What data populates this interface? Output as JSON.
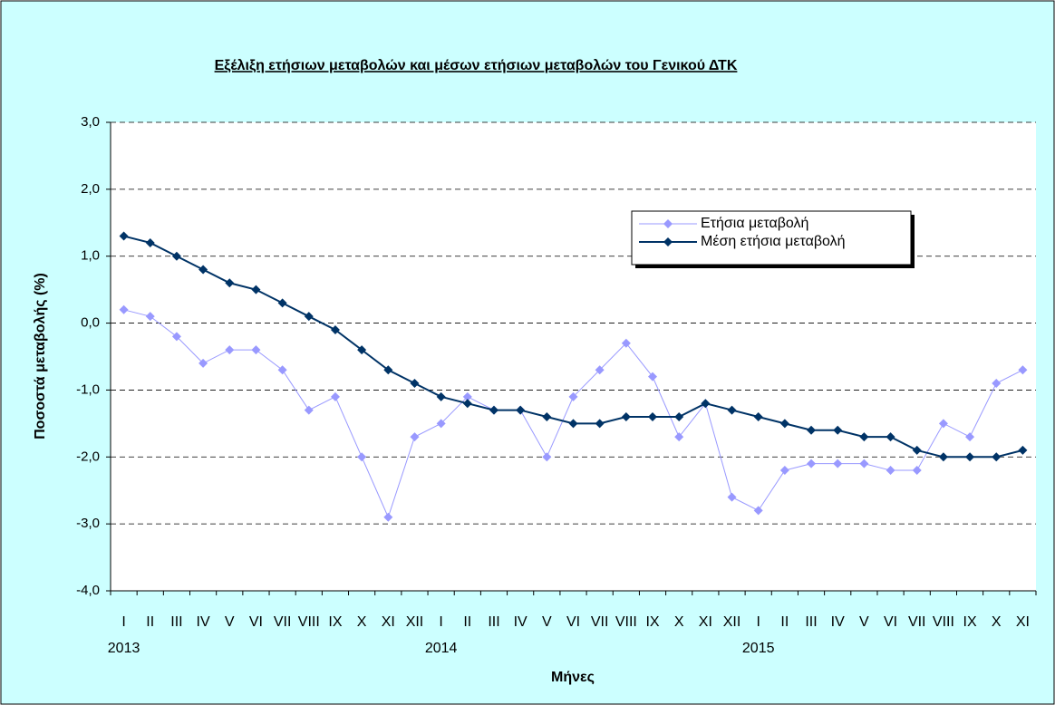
{
  "chart_data": {
    "type": "line",
    "title": "Εξέλιξη ετήσιων μεταβολών και μέσων ετήσιων μεταβολών του Γενικού ΔΤΚ",
    "x_label": "Μήνες",
    "y_label": "Ποσοστά μεταβολής (%)",
    "categories": [
      "I",
      "II",
      "III",
      "IV",
      "V",
      "VI",
      "VII",
      "VIII",
      "IX",
      "X",
      "XI",
      "XII",
      "I",
      "II",
      "III",
      "IV",
      "V",
      "VI",
      "VII",
      "VIII",
      "IX",
      "X",
      "XI",
      "XII",
      "I",
      "II",
      "III",
      "IV",
      "V",
      "VI",
      "VII",
      "VIII",
      "IX",
      "X",
      "XI"
    ],
    "year_labels": [
      "2013",
      null,
      null,
      null,
      null,
      null,
      null,
      null,
      null,
      null,
      null,
      null,
      "2014",
      null,
      null,
      null,
      null,
      null,
      null,
      null,
      null,
      null,
      null,
      null,
      "2015",
      null,
      null,
      null,
      null,
      null,
      null,
      null,
      null,
      null,
      null
    ],
    "series": [
      {
        "name": "Ετήσια μεταβολή",
        "color": "#9999ff",
        "values": [
          0.2,
          0.1,
          -0.2,
          -0.6,
          -0.4,
          -0.4,
          -0.7,
          -1.3,
          -1.1,
          -2.0,
          -2.9,
          -1.7,
          -1.5,
          -1.1,
          -1.3,
          -1.3,
          -2.0,
          -1.1,
          -0.7,
          -0.3,
          -0.8,
          -1.7,
          -1.2,
          -2.6,
          -2.8,
          -2.2,
          -2.1,
          -2.1,
          -2.1,
          -2.2,
          -2.2,
          -1.5,
          -1.7,
          -0.9,
          -0.7
        ]
      },
      {
        "name": "Μέση ετήσια μεταβολή",
        "color": "#003366",
        "values": [
          1.3,
          1.2,
          1.0,
          0.8,
          0.6,
          0.5,
          0.3,
          0.1,
          -0.1,
          -0.4,
          -0.7,
          -0.9,
          -1.1,
          -1.2,
          -1.3,
          -1.3,
          -1.4,
          -1.5,
          -1.5,
          -1.4,
          -1.4,
          -1.4,
          -1.2,
          -1.3,
          -1.4,
          -1.5,
          -1.6,
          -1.6,
          -1.7,
          -1.7,
          -1.9,
          -2.0,
          -2.0,
          -2.0,
          -1.9
        ]
      }
    ],
    "ylim": [
      -4,
      3
    ],
    "yticks": [
      {
        "value": -4,
        "label": "-4,0"
      },
      {
        "value": -3,
        "label": "-3,0"
      },
      {
        "value": -2,
        "label": "-2,0"
      },
      {
        "value": -1,
        "label": "-1,0"
      },
      {
        "value": 0,
        "label": "0,0"
      },
      {
        "value": 1,
        "label": "1,0"
      },
      {
        "value": 2,
        "label": "2,0"
      },
      {
        "value": 3,
        "label": "3,0"
      }
    ],
    "grid": true,
    "legend": "upper right"
  }
}
